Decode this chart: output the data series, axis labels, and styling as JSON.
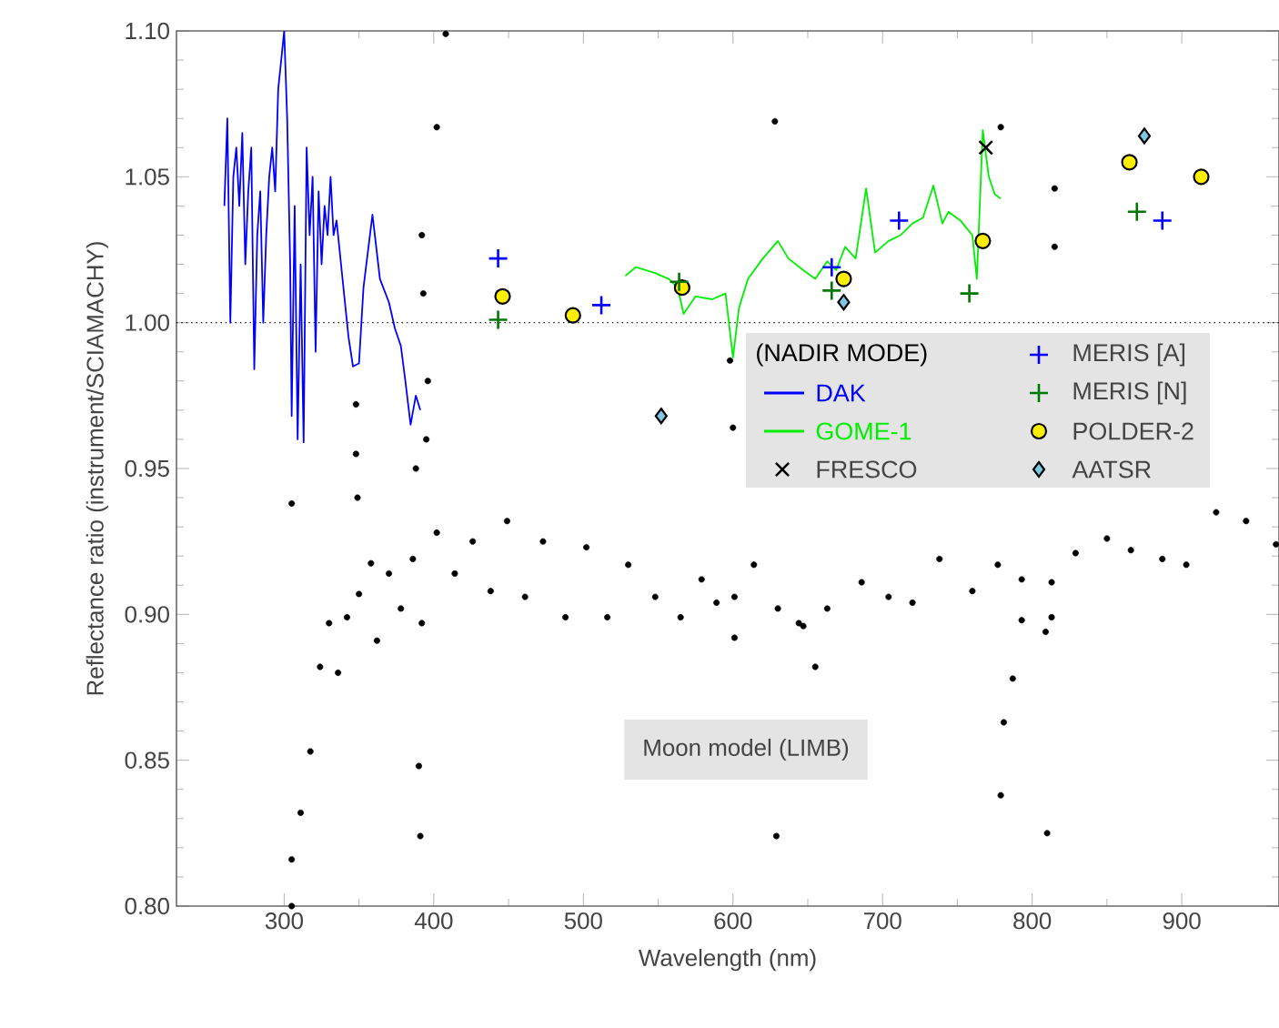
{
  "chart_data": {
    "type": "scatter",
    "xlabel": "Wavelength (nm)",
    "ylabel": "Reflectance ratio (instrument/SCIAMACHY)",
    "legend_title": "(NADIR MODE)",
    "legend": "right",
    "xlim": [
      228,
      965
    ],
    "ylim": [
      0.8,
      1.1
    ],
    "xticks": [
      300,
      400,
      500,
      600,
      700,
      800,
      900
    ],
    "yticks": [
      {
        "value": 0.8,
        "label": "0.80"
      },
      {
        "value": 0.85,
        "label": "0.85"
      },
      {
        "value": 0.9,
        "label": "0.90"
      },
      {
        "value": 0.95,
        "label": "0.95"
      },
      {
        "value": 1.0,
        "label": "1.00"
      },
      {
        "value": 1.05,
        "label": "1.05"
      },
      {
        "value": 1.1,
        "label": "1.10"
      }
    ],
    "ref_lines": [
      {
        "axis": "y",
        "value": 1.0,
        "line_style": "dotted"
      }
    ],
    "annotations": [
      "Moon model (LIMB)"
    ],
    "series": [
      {
        "marker": "circle",
        "color": "#000000",
        "x": [
          305,
          305,
          311,
          317.5,
          324,
          330,
          336,
          342,
          350,
          358,
          362,
          370,
          378,
          386,
          392,
          402,
          414,
          426,
          438,
          449,
          461,
          473,
          488,
          502,
          516,
          530,
          548,
          565,
          579,
          589,
          601,
          601,
          614,
          630,
          644,
          647,
          663,
          686,
          704,
          720,
          738,
          760,
          777,
          793,
          813,
          829,
          850,
          866,
          887,
          903,
          923,
          943,
          963,
          781,
          787,
          793,
          809,
          813,
          305,
          390,
          391,
          629,
          779,
          810,
          655,
          392,
          393,
          396,
          408,
          402,
          395,
          388,
          348,
          348,
          349,
          628,
          779,
          815,
          815,
          598,
          600
        ],
        "values": [
          0.8,
          0.816,
          0.832,
          0.853,
          0.882,
          0.897,
          0.88,
          0.899,
          0.907,
          0.9175,
          0.891,
          0.914,
          0.902,
          0.919,
          0.897,
          0.928,
          0.914,
          0.925,
          0.908,
          0.932,
          0.906,
          0.925,
          0.899,
          0.923,
          0.899,
          0.917,
          0.906,
          0.899,
          0.912,
          0.904,
          0.906,
          0.892,
          0.917,
          0.902,
          0.897,
          0.896,
          0.902,
          0.911,
          0.906,
          0.904,
          0.919,
          0.908,
          0.917,
          0.912,
          0.911,
          0.921,
          0.926,
          0.922,
          0.919,
          0.917,
          0.935,
          0.932,
          0.924,
          0.863,
          0.878,
          0.898,
          0.894,
          0.899,
          0.938,
          0.848,
          0.824,
          0.824,
          0.838,
          0.825,
          0.882,
          1.03,
          1.01,
          0.98,
          1.099,
          1.067,
          0.96,
          0.95,
          0.972,
          0.955,
          0.94,
          1.069,
          1.067,
          1.046,
          1.026,
          0.987,
          0.964
        ]
      },
      {
        "name": "DAK",
        "type": "line",
        "color": "#0000ff",
        "x": [
          260,
          262,
          264,
          266,
          268,
          270,
          272,
          274,
          276,
          278,
          280,
          282,
          284,
          286,
          288,
          290,
          292,
          294,
          296,
          298,
          300,
          302,
          304,
          305,
          307,
          309,
          311,
          313,
          315,
          317,
          319,
          321,
          323,
          325,
          327,
          329,
          331,
          333,
          335,
          338,
          340,
          343,
          346,
          350,
          353,
          359,
          364,
          370,
          374,
          378,
          381,
          384.5,
          388,
          391
        ],
        "values": [
          1.04,
          1.07,
          1.0,
          1.05,
          1.06,
          1.04,
          1.065,
          1.02,
          1.045,
          1.06,
          0.984,
          1.03,
          1.045,
          1.0,
          1.03,
          1.05,
          1.06,
          1.045,
          1.08,
          1.09,
          1.1,
          1.07,
          1.02,
          0.968,
          1.04,
          0.96,
          1.02,
          0.959,
          1.06,
          1.03,
          1.05,
          0.99,
          1.045,
          1.02,
          1.04,
          1.03,
          1.05,
          1.03,
          1.035,
          1.02,
          1.01,
          0.995,
          0.985,
          0.986,
          1.012,
          1.037,
          1.015,
          1.007,
          0.998,
          0.992,
          0.98,
          0.965,
          0.975,
          0.97
        ]
      },
      {
        "name": "GOME-1",
        "type": "line",
        "color": "#00ee00",
        "x": [
          528,
          535,
          548,
          557,
          563,
          567,
          575,
          586,
          595,
          600,
          604,
          610,
          620,
          630,
          637,
          647,
          655,
          663,
          669,
          675,
          682,
          689,
          695,
          704,
          712,
          720,
          727,
          734,
          740,
          744,
          752,
          760,
          763,
          767,
          771,
          775,
          779
        ],
        "values": [
          1.016,
          1.019,
          1.017,
          1.015,
          1.012,
          1.003,
          1.009,
          1.008,
          1.01,
          0.988,
          1.005,
          1.015,
          1.022,
          1.028,
          1.022,
          1.018,
          1.015,
          1.021,
          1.018,
          1.026,
          1.022,
          1.046,
          1.024,
          1.028,
          1.03,
          1.034,
          1.036,
          1.047,
          1.034,
          1.038,
          1.035,
          1.03,
          1.015,
          1.066,
          1.05,
          1.044,
          1.0425
        ]
      },
      {
        "name": "FRESCO",
        "marker": "cross",
        "color": "#000000",
        "x": [
          769
        ],
        "values": [
          1.06
        ]
      },
      {
        "name": "MERIS [A]",
        "marker": "plus",
        "color": "#0000ff",
        "x": [
          443,
          512,
          666,
          711,
          887
        ],
        "values": [
          1.022,
          1.006,
          1.019,
          1.035,
          1.035
        ]
      },
      {
        "name": "MERIS [N]",
        "marker": "plus",
        "color": "#007700",
        "x": [
          443,
          564,
          666,
          758,
          870
        ],
        "values": [
          1.001,
          1.014,
          1.011,
          1.01,
          1.038
        ]
      },
      {
        "name": "POLDER-2",
        "marker": "circle",
        "color": "#ffee00",
        "x": [
          446,
          493,
          566,
          674,
          767,
          865,
          913
        ],
        "values": [
          1.009,
          1.0025,
          1.012,
          1.015,
          1.028,
          1.055,
          1.05
        ]
      },
      {
        "name": "AATSR",
        "marker": "diamond",
        "color": "#7ec8e3",
        "x": [
          552,
          674,
          875
        ],
        "values": [
          0.968,
          1.007,
          1.064
        ]
      }
    ]
  }
}
